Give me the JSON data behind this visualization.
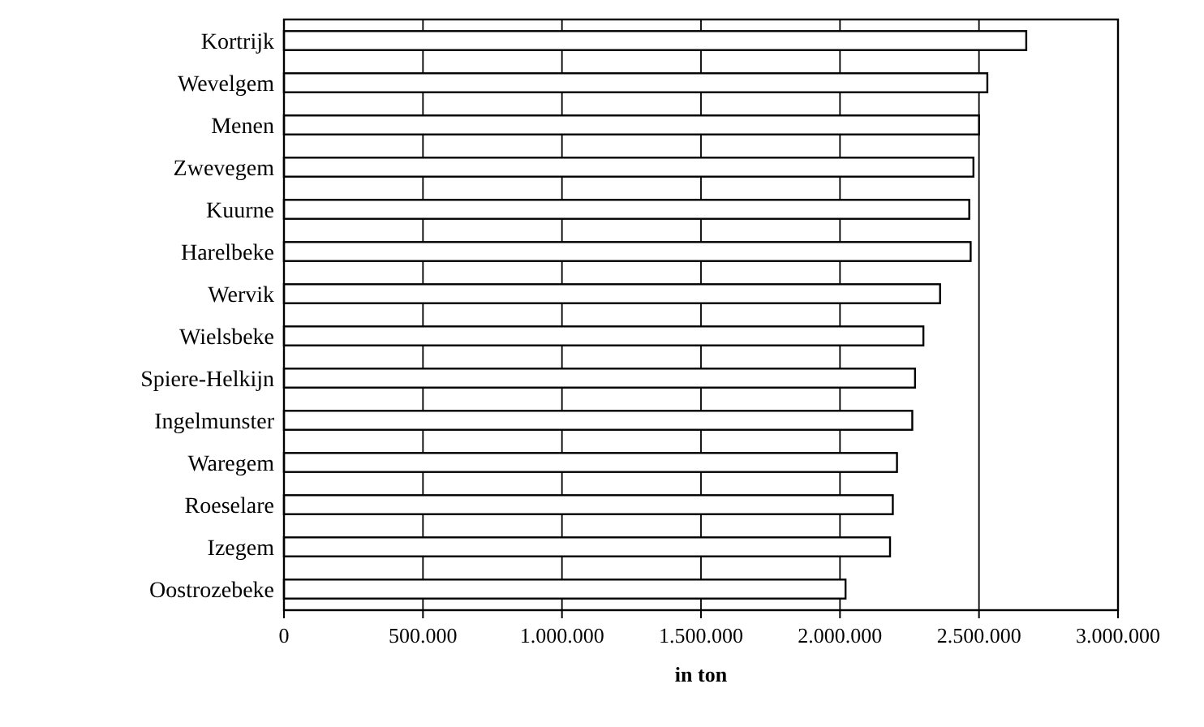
{
  "chart_data": {
    "type": "bar",
    "orientation": "horizontal",
    "xlabel": "in ton",
    "categories": [
      "Kortrijk",
      "Wevelgem",
      "Menen",
      "Zwevegem",
      "Kuurne",
      "Harelbeke",
      "Wervik",
      "Wielsbeke",
      "Spiere-Helkijn",
      "Ingelmunster",
      "Waregem",
      "Roeselare",
      "Izegem",
      "Oostrozebeke"
    ],
    "values": [
      2670000,
      2530000,
      2500000,
      2480000,
      2465000,
      2470000,
      2360000,
      2300000,
      2270000,
      2260000,
      2205000,
      2190000,
      2180000,
      2020000
    ],
    "color": "#ffffff",
    "xlim": [
      0,
      3000000
    ],
    "xticks": [
      0,
      {
        "value": 500000,
        "label": "500.000"
      },
      {
        "value": 1000000,
        "label": "1.000.000"
      },
      {
        "value": 1500000,
        "label": "1.500.000"
      },
      {
        "value": 2000000,
        "label": "2.000.000"
      },
      {
        "value": 2500000,
        "label": "2.500.000"
      },
      {
        "value": 3000000,
        "label": "3.000.000"
      }
    ],
    "grid": "x"
  }
}
